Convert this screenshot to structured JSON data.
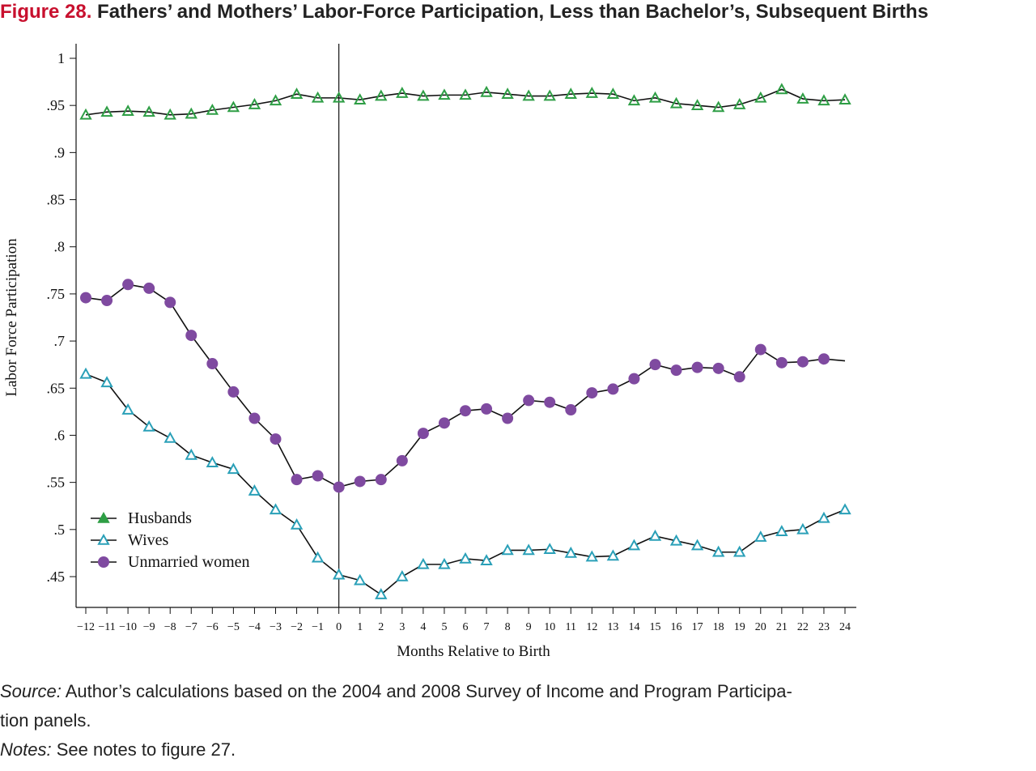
{
  "figure": {
    "label": "Figure 28.",
    "title": "Fathers’ and Mothers’ Labor-Force Participation, Less than Bachelor’s, Subsequent Births"
  },
  "chart_data": {
    "type": "line",
    "xlabel": "Months Relative to Birth",
    "ylabel": "Labor Force Participation",
    "xlim": [
      -12,
      24
    ],
    "ylim": [
      0.43,
      1.0
    ],
    "x": [
      -12,
      -11,
      -10,
      -9,
      -8,
      -7,
      -6,
      -5,
      -4,
      -3,
      -2,
      -1,
      0,
      1,
      2,
      3,
      4,
      5,
      6,
      7,
      8,
      9,
      10,
      11,
      12,
      13,
      14,
      15,
      16,
      17,
      18,
      19,
      20,
      21,
      22,
      23,
      24
    ],
    "x_tick_labels": [
      "−12",
      "−11",
      "−10",
      "−9",
      "−8",
      "−7",
      "−6",
      "−5",
      "−4",
      "−3",
      "−2",
      "−1",
      "0",
      "1",
      "2",
      "3",
      "4",
      "5",
      "6",
      "7",
      "8",
      "9",
      "10",
      "11",
      "12",
      "13",
      "14",
      "15",
      "16",
      "17",
      "18",
      "19",
      "20",
      "21",
      "22",
      "23",
      "24"
    ],
    "y_ticks": [
      0.45,
      0.5,
      0.55,
      0.6,
      0.65,
      0.7,
      0.75,
      0.8,
      0.85,
      0.9,
      0.95,
      1.0
    ],
    "y_tick_labels": [
      ".45",
      ".5",
      ".55",
      ".6",
      ".65",
      ".7",
      ".75",
      ".8",
      ".85",
      ".9",
      ".95",
      "1"
    ],
    "reference_line_x": 0,
    "legend_position": "bottom-left",
    "grid": false,
    "series": [
      {
        "name": "Husbands",
        "marker": "triangle",
        "color": "#2e9e45",
        "values": [
          0.94,
          0.943,
          0.944,
          0.943,
          0.94,
          0.941,
          0.945,
          0.948,
          0.951,
          0.955,
          0.962,
          0.958,
          0.958,
          0.956,
          0.96,
          0.963,
          0.96,
          0.961,
          0.961,
          0.964,
          0.962,
          0.96,
          0.96,
          0.962,
          0.963,
          0.962,
          0.955,
          0.958,
          0.952,
          0.95,
          0.948,
          0.951,
          0.958,
          0.967,
          0.957,
          0.955,
          0.956
        ]
      },
      {
        "name": "Wives",
        "marker": "triangle-open",
        "color": "#2aa0b8",
        "values": [
          0.665,
          0.656,
          0.627,
          0.609,
          0.597,
          0.579,
          0.571,
          0.564,
          0.541,
          0.521,
          0.505,
          0.47,
          0.452,
          0.446,
          0.431,
          0.45,
          0.463,
          0.463,
          0.469,
          0.467,
          0.478,
          0.478,
          0.479,
          0.475,
          0.471,
          0.472,
          0.483,
          0.493,
          0.488,
          0.483,
          0.476,
          0.476,
          0.492,
          0.498,
          0.5,
          0.512,
          0.521
        ]
      },
      {
        "name": "Unmarried women",
        "marker": "circle",
        "color": "#7f4aa0",
        "values": [
          0.746,
          0.743,
          0.76,
          0.756,
          0.741,
          0.706,
          0.676,
          0.646,
          0.618,
          0.596,
          0.553,
          0.557,
          0.545,
          0.551,
          0.553,
          0.573,
          0.602,
          0.613,
          0.626,
          0.628,
          0.618,
          0.637,
          0.635,
          0.627,
          0.645,
          0.649,
          0.66,
          0.675,
          0.669,
          0.672,
          0.671,
          0.662,
          0.691,
          0.677,
          0.678,
          0.681,
          null
        ]
      }
    ],
    "unmarried_line_end": 0.679
  },
  "footer": {
    "source_label": "Source:",
    "source_text": " Author’s calculations based on the 2004 and 2008 Survey of Income and Program Participa-",
    "source_text_cont": "tion panels.",
    "notes_label": "Notes:",
    "notes_text": " See notes to figure 27."
  }
}
